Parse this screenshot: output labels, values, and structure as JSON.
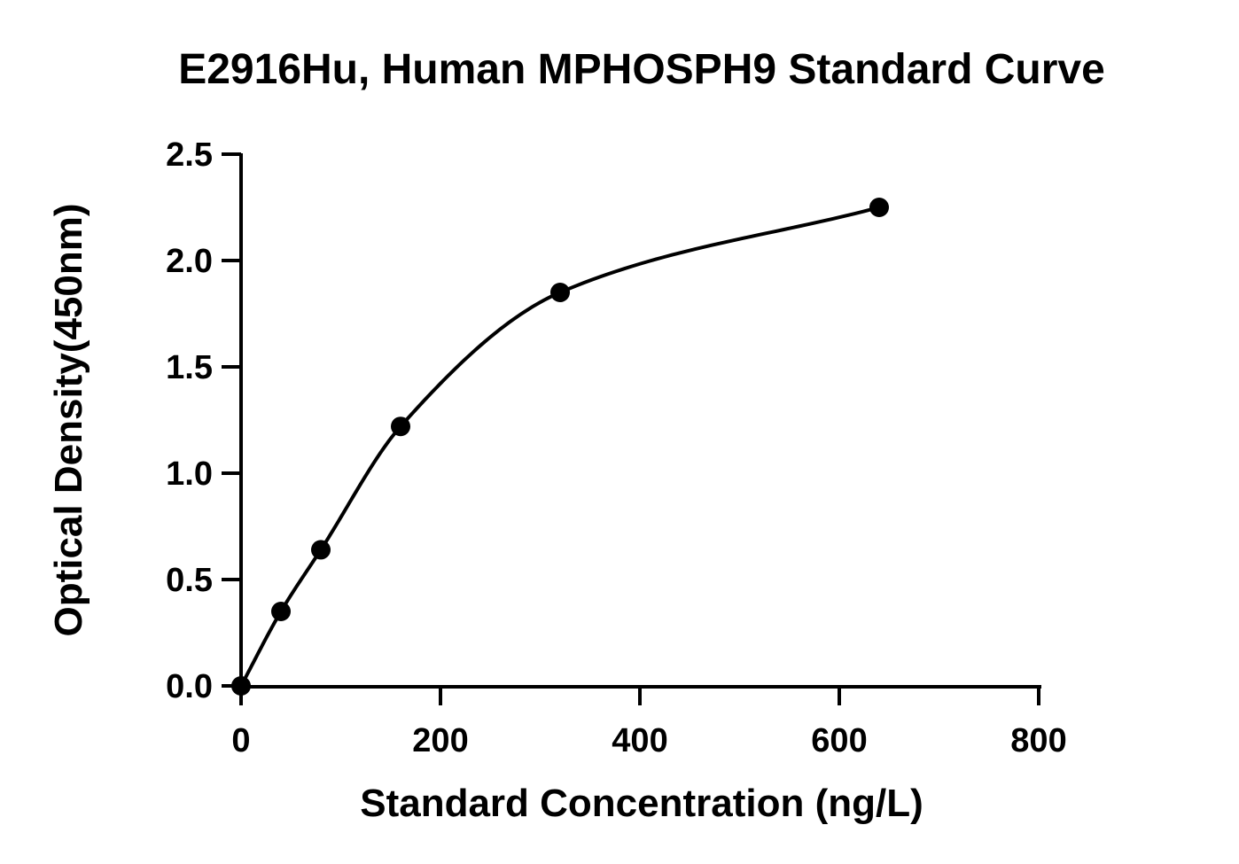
{
  "chart_data": {
    "type": "scatter",
    "title": "E2916Hu, Human MPHOSPH9 Standard Curve",
    "xlabel": "Standard Concentration (ng/L)",
    "ylabel": "Optical Density(450nm)",
    "xlim": [
      0,
      800
    ],
    "ylim": [
      0,
      2.5
    ],
    "xticks": [
      0,
      200,
      400,
      600,
      800
    ],
    "xtick_labels": [
      "0",
      "200",
      "400",
      "600",
      "800"
    ],
    "yticks": [
      0,
      0.5,
      1.0,
      1.5,
      2.0,
      2.5
    ],
    "ytick_labels": [
      "0.0",
      "0.5",
      "1.0",
      "1.5",
      "2.0",
      "2.5"
    ],
    "grid": false,
    "series": [
      {
        "x": [
          0,
          40,
          80,
          160,
          320,
          640
        ],
        "y": [
          0.0,
          0.35,
          0.64,
          1.22,
          1.85,
          2.25
        ],
        "marker": "circle",
        "color": "#000000",
        "fit": "smooth-curve"
      }
    ]
  }
}
